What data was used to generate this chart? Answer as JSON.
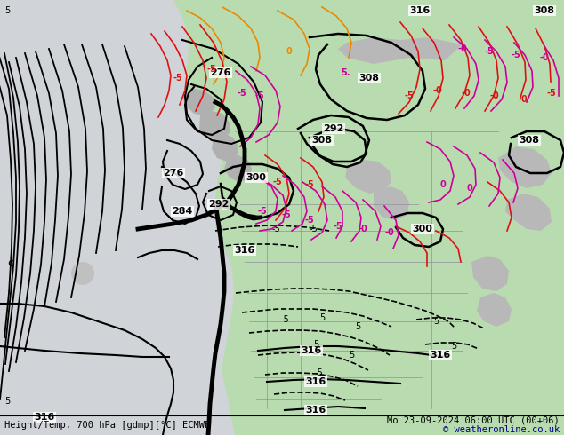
{
  "title_left": "Height/Temp. 700 hPa [gdmp][°C] ECMWF",
  "title_right": "Mo 23-09-2024 06:00 UTC (00+06)",
  "copyright": "© weatheronline.co.uk",
  "bg_gray": "#d8d8d8",
  "land_green": "#b8dcb0",
  "land_gray": "#b8b8b8",
  "ocean_color": "#c8d0d8",
  "figsize": [
    6.34,
    4.9
  ],
  "dpi": 100
}
